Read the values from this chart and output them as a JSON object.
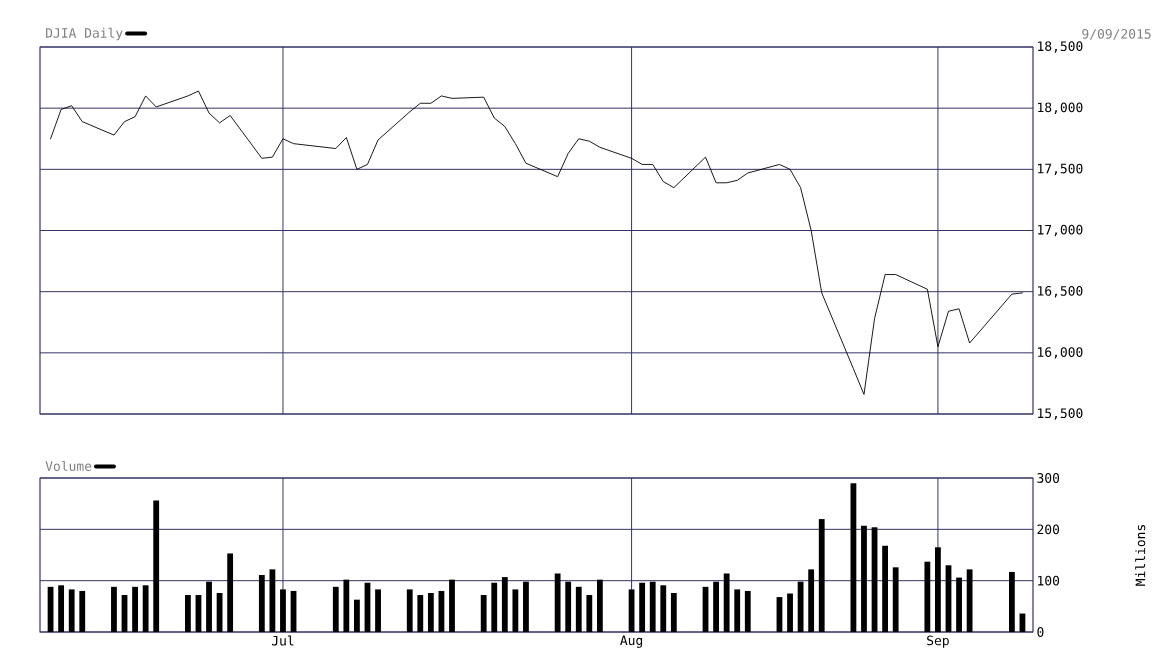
{
  "chart_data": [
    {
      "type": "line",
      "marker": "none",
      "grid": true,
      "legend": "top left",
      "tick_labels": "y",
      "annotations": [
        "9/09/2015"
      ],
      "x": [
        "2015-06-09",
        "2015-06-10",
        "2015-06-11",
        "2015-06-12",
        "2015-06-15",
        "2015-06-16",
        "2015-06-17",
        "2015-06-18",
        "2015-06-19",
        "2015-06-22",
        "2015-06-23",
        "2015-06-24",
        "2015-06-25",
        "2015-06-26",
        "2015-06-29",
        "2015-06-30",
        "2015-07-01",
        "2015-07-02",
        "2015-07-06",
        "2015-07-07",
        "2015-07-08",
        "2015-07-09",
        "2015-07-10",
        "2015-07-13",
        "2015-07-14",
        "2015-07-15",
        "2015-07-16",
        "2015-07-17",
        "2015-07-20",
        "2015-07-21",
        "2015-07-22",
        "2015-07-23",
        "2015-07-24",
        "2015-07-27",
        "2015-07-28",
        "2015-07-29",
        "2015-07-30",
        "2015-07-31",
        "2015-08-03",
        "2015-08-04",
        "2015-08-05",
        "2015-08-06",
        "2015-08-07",
        "2015-08-10",
        "2015-08-11",
        "2015-08-12",
        "2015-08-13",
        "2015-08-14",
        "2015-08-17",
        "2015-08-18",
        "2015-08-19",
        "2015-08-20",
        "2015-08-21",
        "2015-08-24",
        "2015-08-25",
        "2015-08-26",
        "2015-08-27",
        "2015-08-28",
        "2015-08-31",
        "2015-09-01",
        "2015-09-02",
        "2015-09-03",
        "2015-09-04",
        "2015-09-08",
        "2015-09-09"
      ],
      "series": [
        {
          "name": "DJIA Daily",
          "color": "#000000",
          "values": [
            17750,
            17990,
            18020,
            17890,
            17780,
            17890,
            17930,
            18100,
            18010,
            18100,
            18140,
            17960,
            17880,
            17940,
            17590,
            17600,
            17750,
            17710,
            17670,
            17760,
            17500,
            17540,
            17740,
            17970,
            18040,
            18040,
            18100,
            18080,
            18090,
            17920,
            17850,
            17710,
            17550,
            17440,
            17630,
            17750,
            17730,
            17680,
            17590,
            17540,
            17540,
            17400,
            17350,
            17600,
            17390,
            17390,
            17410,
            17470,
            17540,
            17500,
            17350,
            17000,
            16490,
            15870,
            15660,
            16280,
            16640,
            16640,
            16520,
            16050,
            16340,
            16360,
            16080,
            16480,
            16490
          ]
        }
      ],
      "xlim": [
        "2015-06-08",
        "2015-09-10"
      ],
      "xticks": [
        {
          "value": "2015-07-01",
          "label": null
        },
        {
          "value": "2015-08-03",
          "label": null
        },
        {
          "value": "2015-09-01",
          "label": null
        }
      ],
      "ylim": [
        15500,
        18500
      ],
      "yticks": [
        {
          "value": 15500,
          "label": "15,500"
        },
        {
          "value": 16000,
          "label": "16,000"
        },
        {
          "value": 16500,
          "label": "16,500"
        },
        {
          "value": 17000,
          "label": "17,000"
        },
        {
          "value": 17500,
          "label": "17,500"
        },
        {
          "value": 18000,
          "label": "18,000"
        },
        {
          "value": 18500,
          "label": "18,500"
        }
      ]
    },
    {
      "type": "bar",
      "grid": true,
      "legend": "top left",
      "ylabel": "Millions",
      "x": [
        "2015-06-09",
        "2015-06-10",
        "2015-06-11",
        "2015-06-12",
        "2015-06-15",
        "2015-06-16",
        "2015-06-17",
        "2015-06-18",
        "2015-06-19",
        "2015-06-22",
        "2015-06-23",
        "2015-06-24",
        "2015-06-25",
        "2015-06-26",
        "2015-06-29",
        "2015-06-30",
        "2015-07-01",
        "2015-07-02",
        "2015-07-06",
        "2015-07-07",
        "2015-07-08",
        "2015-07-09",
        "2015-07-10",
        "2015-07-13",
        "2015-07-14",
        "2015-07-15",
        "2015-07-16",
        "2015-07-17",
        "2015-07-20",
        "2015-07-21",
        "2015-07-22",
        "2015-07-23",
        "2015-07-24",
        "2015-07-27",
        "2015-07-28",
        "2015-07-29",
        "2015-07-30",
        "2015-07-31",
        "2015-08-03",
        "2015-08-04",
        "2015-08-05",
        "2015-08-06",
        "2015-08-07",
        "2015-08-10",
        "2015-08-11",
        "2015-08-12",
        "2015-08-13",
        "2015-08-14",
        "2015-08-17",
        "2015-08-18",
        "2015-08-19",
        "2015-08-20",
        "2015-08-21",
        "2015-08-24",
        "2015-08-25",
        "2015-08-26",
        "2015-08-27",
        "2015-08-28",
        "2015-08-31",
        "2015-09-01",
        "2015-09-02",
        "2015-09-03",
        "2015-09-04",
        "2015-09-08",
        "2015-09-09"
      ],
      "series": [
        {
          "name": "Volume",
          "color": "#000000",
          "values": [
            88,
            91,
            83,
            80,
            88,
            72,
            88,
            91,
            256,
            72,
            72,
            98,
            76,
            153,
            111,
            122,
            83,
            80,
            88,
            102,
            63,
            96,
            83,
            83,
            72,
            76,
            80,
            102,
            72,
            96,
            107,
            83,
            98,
            114,
            98,
            88,
            72,
            102,
            83,
            96,
            98,
            91,
            76,
            88,
            98,
            114,
            83,
            80,
            68,
            75,
            98,
            122,
            220,
            290,
            207,
            204,
            168,
            126,
            137,
            165,
            130,
            106,
            122,
            117,
            36
          ]
        }
      ],
      "xlim": [
        "2015-06-08",
        "2015-09-10"
      ],
      "xticks": [
        {
          "value": "2015-07-01",
          "label": "Jul"
        },
        {
          "value": "2015-08-03",
          "label": "Aug"
        },
        {
          "value": "2015-09-01",
          "label": "Sep"
        }
      ],
      "ylim": [
        0,
        300
      ],
      "yticks": [
        0,
        100,
        200,
        300
      ]
    }
  ]
}
